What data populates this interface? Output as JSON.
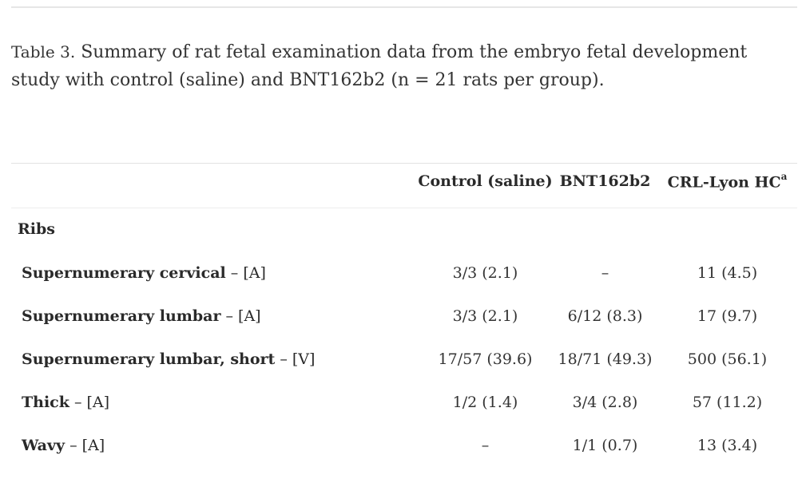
{
  "caption": {
    "label": "Table 3.",
    "text": "Summary of rat fetal examination data from the embryo fetal development study with control (saline) and BNT162b2 (n = 21 rats per group)."
  },
  "table": {
    "columns": [
      "Control (saline)",
      "BNT162b2",
      "CRL-Lyon HC"
    ],
    "column_footnote": "a",
    "section": "Ribs",
    "rows": [
      {
        "label": "Supernumerary cervical",
        "suffix": " – [A]",
        "values": [
          "3/3 (2.1)",
          "–",
          "11 (4.5)"
        ]
      },
      {
        "label": "Supernumerary lumbar",
        "suffix": " – [A]",
        "values": [
          "3/3 (2.1)",
          "6/12 (8.3)",
          "17 (9.7)"
        ]
      },
      {
        "label": "Supernumerary lumbar, short",
        "suffix": " – [V]",
        "values": [
          "17/57 (39.6)",
          "18/71 (49.3)",
          "500 (56.1)"
        ]
      },
      {
        "label": "Thick",
        "suffix": " – [A]",
        "values": [
          "1/2 (1.4)",
          "3/4 (2.8)",
          "57 (11.2)"
        ]
      },
      {
        "label": "Wavy",
        "suffix": " – [A]",
        "values": [
          "–",
          "1/1 (0.7)",
          "13 (3.4)"
        ]
      }
    ]
  }
}
